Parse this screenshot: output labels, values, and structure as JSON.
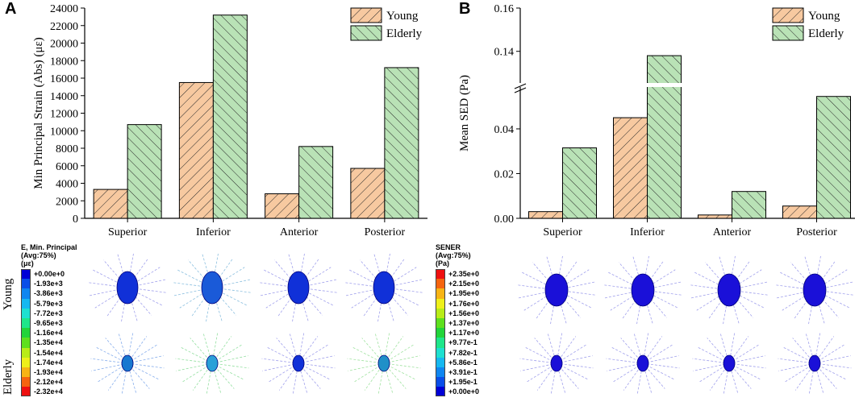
{
  "panels": {
    "a_label": "A",
    "b_label": "B"
  },
  "legend": {
    "young": "Young",
    "elderly": "Elderly"
  },
  "colors": {
    "young_fill": "#f7c9a0",
    "elderly_fill": "#b9e2b6",
    "hatch": "#2a2a2a"
  },
  "chart_data": [
    {
      "type": "bar",
      "title": "",
      "xlabel": "",
      "ylabel": "Min Principal Strain (Abs) (με)",
      "categories": [
        "Superior",
        "Inferior",
        "Anterior",
        "Posterior"
      ],
      "series": [
        {
          "name": "Young",
          "values": [
            3300,
            15500,
            2800,
            5700
          ]
        },
        {
          "name": "Elderly",
          "values": [
            10700,
            23200,
            8200,
            17200
          ]
        }
      ],
      "ylim": [
        0,
        24000
      ],
      "yticks": [
        "0",
        "2000",
        "4000",
        "6000",
        "8000",
        "10000",
        "12000",
        "14000",
        "16000",
        "18000",
        "20000",
        "22000",
        "24000"
      ],
      "legend_position": "top-right"
    },
    {
      "type": "bar",
      "title": "",
      "xlabel": "",
      "ylabel": "Mean SED (Pa)",
      "categories": [
        "Superior",
        "Inferior",
        "Anterior",
        "Posterior"
      ],
      "series": [
        {
          "name": "Young",
          "values": [
            0.003,
            0.045,
            0.0015,
            0.0055
          ]
        },
        {
          "name": "Elderly",
          "values": [
            0.0315,
            0.138,
            0.012,
            0.0545
          ]
        }
      ],
      "ylim": [
        0,
        0.16
      ],
      "axis_break": [
        0.058,
        0.125
      ],
      "yticks": [
        "0.00",
        "0.02",
        "0.04",
        "0.14",
        "0.16"
      ],
      "legend_position": "top-right"
    }
  ],
  "contour_a": {
    "title_line1": "E, Min. Principal",
    "title_line2": "(Avg:75%)",
    "title_line3": "(με)",
    "values": [
      "+0.00e+0",
      "-1.93e+3",
      "-3.86e+3",
      "-5.79e+3",
      "-7.72e+3",
      "-9.65e+3",
      "-1.16e+4",
      "-1.35e+4",
      "-1.54e+4",
      "-1.74e+4",
      "-1.93e+4",
      "-2.12e+4",
      "-2.32e+4"
    ],
    "colors": [
      "#0000d6",
      "#0a4ee8",
      "#0f86f0",
      "#16b8f0",
      "#1ee0d0",
      "#1ee68a",
      "#22d43a",
      "#5ee01e",
      "#b8ec18",
      "#eef01a",
      "#f7b415",
      "#f5640f",
      "#ee1010"
    ]
  },
  "contour_b": {
    "title_line1": "SENER",
    "title_line2": "(Avg:75%)",
    "title_line3": "(Pa)",
    "values": [
      "+2.35e+0",
      "+2.15e+0",
      "+1.95e+0",
      "+1.76e+0",
      "+1.56e+0",
      "+1.37e+0",
      "+1.17e+0",
      "+9.77e-1",
      "+7.82e-1",
      "+5.86e-1",
      "+3.91e-1",
      "+1.95e-1",
      "+0.00e+0"
    ],
    "colors": [
      "#ee1010",
      "#f5640f",
      "#f7b415",
      "#eef01a",
      "#b8ec18",
      "#5ee01e",
      "#22d43a",
      "#1ee68a",
      "#1ee0d0",
      "#16b8f0",
      "#0f86f0",
      "#0a4ee8",
      "#0000d6"
    ]
  },
  "rows": {
    "young": "Young",
    "elderly": "Elderly"
  }
}
